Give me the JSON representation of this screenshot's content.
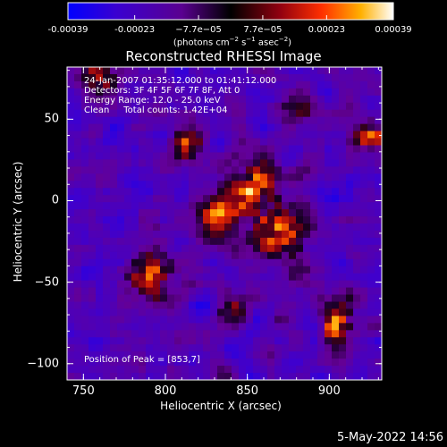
{
  "chart_data": {
    "type": "heatmap",
    "title": "Reconstructed RHESSI Image",
    "xlabel": "Heliocentric X (arcsec)",
    "ylabel": "Heliocentric Y (arcsec)",
    "xlim": [
      740,
      932
    ],
    "ylim": [
      -110,
      82
    ],
    "x_ticks": [
      750,
      800,
      850,
      900
    ],
    "y_ticks": [
      50,
      0,
      -50,
      -100
    ],
    "colorbar": {
      "ticks": [
        "-0.00039",
        "-0.00023",
        "−7.7e−05",
        "7.7e−05",
        "0.00023",
        "0.00039"
      ],
      "tick_values": [
        -0.00039,
        -0.00023,
        -7.7e-05,
        7.7e-05,
        0.00023,
        0.00039
      ],
      "range": [
        -0.00039,
        0.00039
      ],
      "units_text": "(photons cm",
      "units_exp1": "−2",
      "units_mid1": " s",
      "units_exp2": "−1",
      "units_mid2": " asec",
      "units_exp3": "−2",
      "units_end": ")"
    },
    "annotations": [
      "24-Jan-2007 01:35:12.000 to 01:41:12.000",
      "Detectors: 3F 4F 5F 6F 7F 8F, Att 0",
      "Energy Range: 12.0 - 25.0 keV",
      "Clean     Total counts: 1.42E+04"
    ],
    "peak_label": "Position of Peak = [853,7]",
    "peak": [
      853,
      7
    ],
    "colors": {
      "colormap": [
        "#0000ff",
        "#3000c0",
        "#5a0090",
        "#1a0020",
        "#700020",
        "#d02000",
        "#ff6000",
        "#ffc800",
        "#ffffff"
      ]
    }
  },
  "footer": {
    "date": "5-May-2022 14:56"
  }
}
